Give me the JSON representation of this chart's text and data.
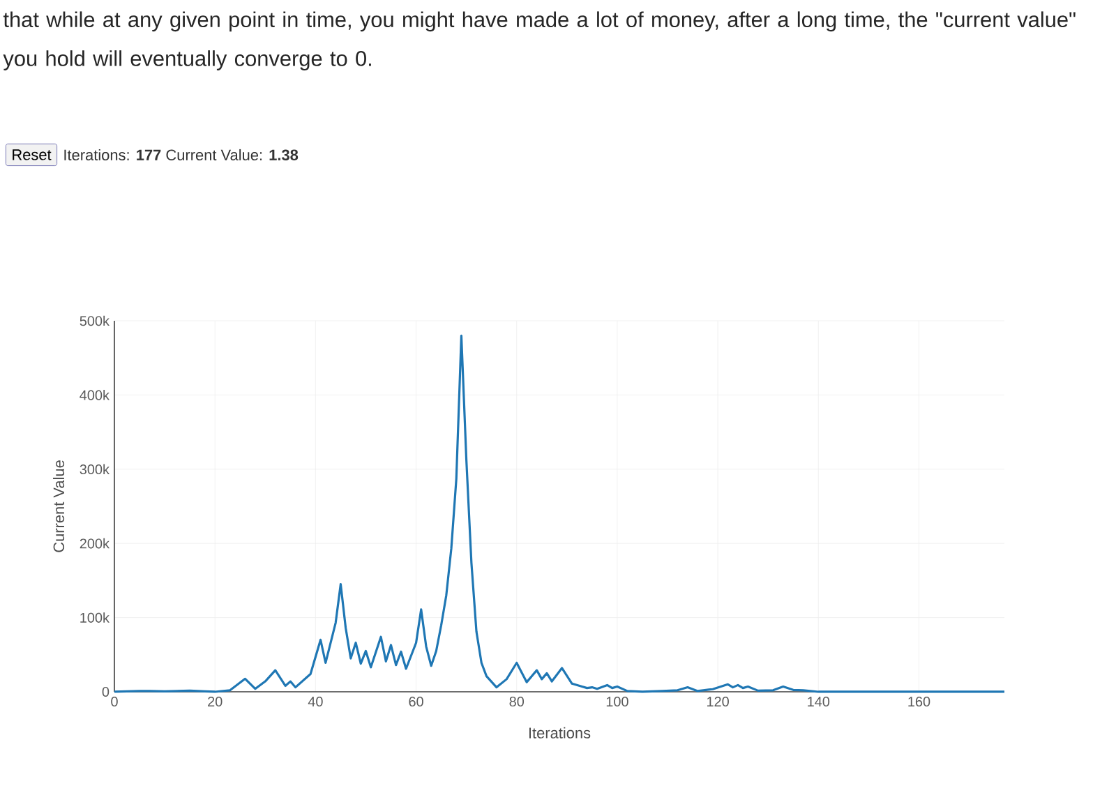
{
  "chart_data": {
    "type": "line",
    "title": "that while at any given point in time, you might have made a lot of money, after a long time, the \"current value\" you hold will eventually converge to 0.",
    "annotations": [
      "Reset",
      "Iterations: **177** Current Value: **1.38**"
    ],
    "xlabel": "Iterations",
    "ylabel": "Current Value",
    "x": [
      0,
      5,
      7,
      10,
      15,
      18,
      20,
      23,
      26,
      28,
      30,
      32,
      34,
      35,
      36,
      39,
      41,
      42,
      44,
      45,
      46,
      47,
      48,
      49,
      50,
      51,
      53,
      54,
      55,
      56,
      57,
      58,
      60,
      61,
      62,
      63,
      64,
      65,
      66,
      67,
      68,
      69,
      70,
      71,
      72,
      73,
      74,
      76,
      78,
      80,
      82,
      84,
      85,
      86,
      87,
      89,
      91,
      93,
      94,
      95,
      96,
      98,
      99,
      100,
      102,
      105,
      109,
      112,
      114,
      116,
      119,
      122,
      123,
      124,
      125,
      126,
      128,
      131,
      133,
      135,
      137,
      140,
      145,
      177
    ],
    "series": [
      {
        "color": "#1f77b4",
        "values": [
          0,
          1000,
          1000,
          500,
          1500,
          500,
          0,
          2000,
          17500,
          4000,
          14000,
          29000,
          8000,
          14000,
          6000,
          24000,
          70000,
          39000,
          93000,
          145000,
          86000,
          45000,
          66000,
          38000,
          55000,
          33000,
          74000,
          41000,
          63000,
          36000,
          54000,
          31000,
          66000,
          111000,
          61000,
          35000,
          55000,
          90000,
          130000,
          193000,
          287000,
          480000,
          312000,
          174000,
          81000,
          39000,
          21000,
          6000,
          17000,
          39000,
          13000,
          29000,
          17000,
          25000,
          14000,
          32000,
          11000,
          7000,
          5000,
          6000,
          4000,
          9000,
          5000,
          7000,
          1000,
          0,
          1000,
          2000,
          6000,
          1000,
          3500,
          10000,
          6000,
          9000,
          5000,
          7000,
          1500,
          2000,
          7000,
          2500,
          2000,
          0,
          0,
          0
        ]
      }
    ],
    "xlim": [
      0,
      177
    ],
    "ylim": [
      0,
      500000
    ],
    "xticks": [
      0,
      20,
      40,
      60,
      80,
      100,
      120,
      140,
      160
    ],
    "yticks": [
      0,
      {
        "value": 100000,
        "label": "100k"
      },
      {
        "value": 200000,
        "label": "200k"
      },
      {
        "value": 300000,
        "label": "300k"
      },
      {
        "value": 400000,
        "label": "400k"
      },
      {
        "value": 500000,
        "label": "500k"
      }
    ],
    "grid": true,
    "line_style": "solid"
  }
}
